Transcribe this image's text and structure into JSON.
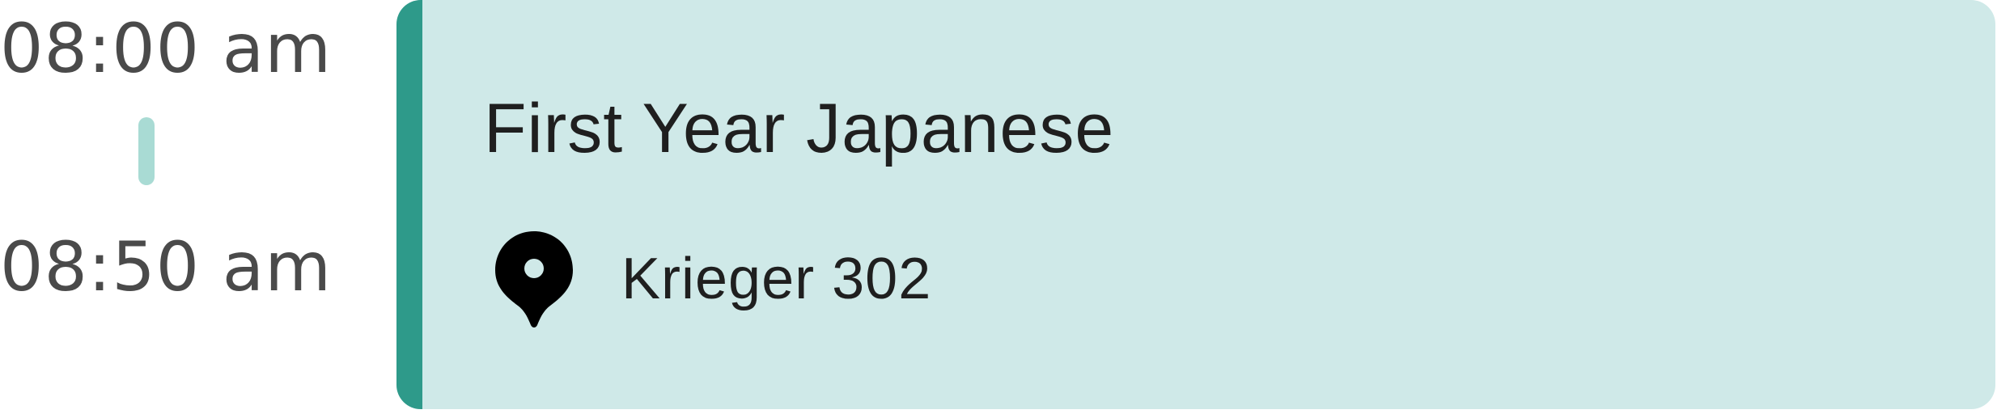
{
  "schedule": {
    "start_time": "08:00 am",
    "end_time": "08:50 am"
  },
  "event": {
    "title": "First Year Japanese",
    "location": "Krieger 302",
    "location_icon": "map-pin-icon"
  },
  "colors": {
    "card_background": "#cfe9e8",
    "card_accent": "#2e9a8a",
    "connector": "#a9dbd4",
    "time_text": "#4a4a4a",
    "card_text": "#1f1f1f"
  }
}
